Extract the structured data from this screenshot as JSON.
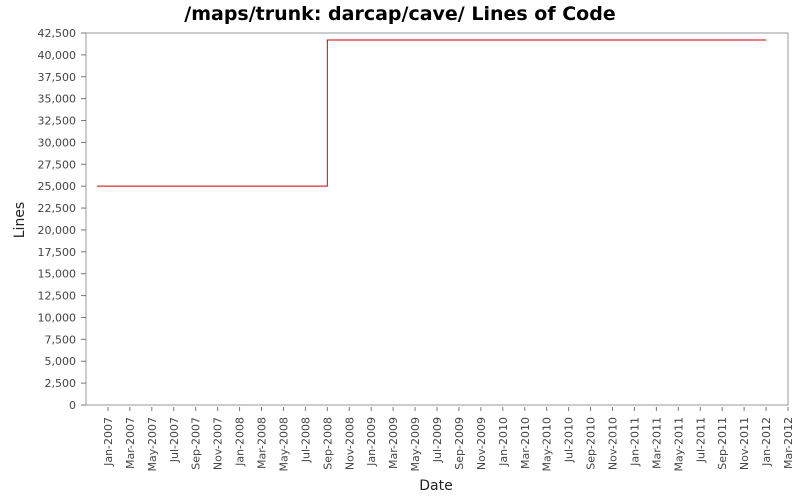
{
  "chart_data": {
    "type": "line",
    "step": true,
    "title": "/maps/trunk: darcap/cave/ Lines of Code",
    "x_label": "Date",
    "y_label": "Lines",
    "color": "#cc0000",
    "grid": false,
    "x": [
      "2006-12",
      "2008-09",
      "2012-01"
    ],
    "values": [
      25000,
      41700,
      41700
    ],
    "xlim": [
      "2006-11",
      "2012-03"
    ],
    "xticks": [
      {
        "value": "2007-01",
        "label": "Jan-2007"
      },
      {
        "value": "2007-03",
        "label": "Mar-2007"
      },
      {
        "value": "2007-05",
        "label": "May-2007"
      },
      {
        "value": "2007-07",
        "label": "Jul-2007"
      },
      {
        "value": "2007-09",
        "label": "Sep-2007"
      },
      {
        "value": "2007-11",
        "label": "Nov-2007"
      },
      {
        "value": "2008-01",
        "label": "Jan-2008"
      },
      {
        "value": "2008-03",
        "label": "Mar-2008"
      },
      {
        "value": "2008-05",
        "label": "May-2008"
      },
      {
        "value": "2008-07",
        "label": "Jul-2008"
      },
      {
        "value": "2008-09",
        "label": "Sep-2008"
      },
      {
        "value": "2008-11",
        "label": "Nov-2008"
      },
      {
        "value": "2009-01",
        "label": "Jan-2009"
      },
      {
        "value": "2009-03",
        "label": "Mar-2009"
      },
      {
        "value": "2009-05",
        "label": "May-2009"
      },
      {
        "value": "2009-07",
        "label": "Jul-2009"
      },
      {
        "value": "2009-09",
        "label": "Sep-2009"
      },
      {
        "value": "2009-11",
        "label": "Nov-2009"
      },
      {
        "value": "2010-01",
        "label": "Jan-2010"
      },
      {
        "value": "2010-03",
        "label": "Mar-2010"
      },
      {
        "value": "2010-05",
        "label": "May-2010"
      },
      {
        "value": "2010-07",
        "label": "Jul-2010"
      },
      {
        "value": "2010-09",
        "label": "Sep-2010"
      },
      {
        "value": "2010-11",
        "label": "Nov-2010"
      },
      {
        "value": "2011-01",
        "label": "Jan-2011"
      },
      {
        "value": "2011-03",
        "label": "Mar-2011"
      },
      {
        "value": "2011-05",
        "label": "May-2011"
      },
      {
        "value": "2011-07",
        "label": "Jul-2011"
      },
      {
        "value": "2011-09",
        "label": "Sep-2011"
      },
      {
        "value": "2011-11",
        "label": "Nov-2011"
      },
      {
        "value": "2012-01",
        "label": "Jan-2012"
      },
      {
        "value": "2012-03",
        "label": "Mar-2012"
      }
    ],
    "ylim": [
      0,
      42500
    ],
    "yticks": [
      0,
      {
        "value": 2500,
        "label": "2,500"
      },
      {
        "value": 5000,
        "label": "5,000"
      },
      {
        "value": 7500,
        "label": "7,500"
      },
      {
        "value": 10000,
        "label": "10,000"
      },
      {
        "value": 12500,
        "label": "12,500"
      },
      {
        "value": 15000,
        "label": "15,000"
      },
      {
        "value": 17500,
        "label": "17,500"
      },
      {
        "value": 20000,
        "label": "20,000"
      },
      {
        "value": 22500,
        "label": "22,500"
      },
      {
        "value": 25000,
        "label": "25,000"
      },
      {
        "value": 27500,
        "label": "27,500"
      },
      {
        "value": 30000,
        "label": "30,000"
      },
      {
        "value": 32500,
        "label": "32,500"
      },
      {
        "value": 35000,
        "label": "35,000"
      },
      {
        "value": 37500,
        "label": "37,500"
      },
      {
        "value": 40000,
        "label": "40,000"
      },
      {
        "value": 42500,
        "label": "42,500"
      }
    ]
  }
}
